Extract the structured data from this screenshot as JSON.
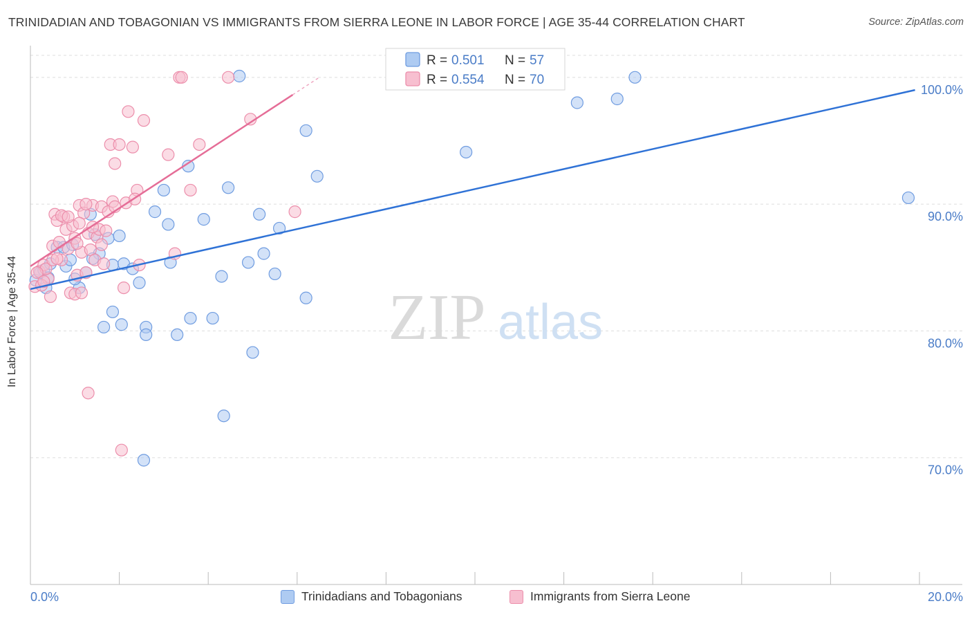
{
  "header": {
    "title": "TRINIDADIAN AND TOBAGONIAN VS IMMIGRANTS FROM SIERRA LEONE IN LABOR FORCE | AGE 35-44 CORRELATION CHART",
    "source": "Source: ZipAtlas.com"
  },
  "watermark": {
    "zip": "ZIP",
    "atlas": "atlas"
  },
  "colors": {
    "blue_fill": "#aecbf2",
    "blue_stroke": "#6f9ce0",
    "blue_line": "#2f72d6",
    "pink_fill": "#f7bfd0",
    "pink_stroke": "#ec8eab",
    "pink_line": "#e56d97",
    "tick_label": "#4a7cc7",
    "grid": "#dddddd"
  },
  "chart_data": {
    "type": "scatter",
    "title": "TRINIDADIAN AND TOBAGONIAN VS IMMIGRANTS FROM SIERRA LEONE IN LABOR FORCE | AGE 35-44 CORRELATION CHART",
    "xlabel": "",
    "ylabel": "In Labor Force | Age 35-44",
    "xlim": [
      0,
      20
    ],
    "ylim": [
      60,
      102.5
    ],
    "x_tick_labels": [
      {
        "value": 0,
        "label": "0.0%"
      },
      {
        "value": 20,
        "label": "20.0%"
      }
    ],
    "y_tick_labels": [
      {
        "value": 70,
        "label": "70.0%"
      },
      {
        "value": 80,
        "label": "80.0%"
      },
      {
        "value": 90,
        "label": "90.0%"
      },
      {
        "value": 100,
        "label": "100.0%"
      }
    ],
    "legend": [
      {
        "name": "Trinidadians and Tobagonians",
        "r_label": "R = ",
        "r": "0.501",
        "n_label": "N = ",
        "n": "57"
      },
      {
        "name": "Immigrants from Sierra Leone",
        "r_label": "R = ",
        "r": "0.554",
        "n_label": "N = ",
        "n": "70"
      }
    ],
    "series": [
      {
        "name": "Trinidadians and Tobagonians",
        "color": "blue",
        "trend": {
          "x0": 0.0,
          "y0": 83.3,
          "x1": 19.9,
          "y1": 99.0
        },
        "points": [
          [
            0.12,
            84.0
          ],
          [
            0.22,
            84.6
          ],
          [
            0.3,
            84.8
          ],
          [
            0.35,
            83.4
          ],
          [
            0.45,
            85.3
          ],
          [
            0.6,
            86.6
          ],
          [
            0.75,
            86.6
          ],
          [
            0.8,
            85.1
          ],
          [
            0.9,
            85.6
          ],
          [
            1.1,
            83.4
          ],
          [
            1.0,
            84.1
          ],
          [
            1.25,
            84.6
          ],
          [
            1.35,
            89.2
          ],
          [
            1.45,
            87.6
          ],
          [
            1.75,
            87.3
          ],
          [
            1.55,
            86.1
          ],
          [
            1.85,
            85.2
          ],
          [
            2.0,
            87.5
          ],
          [
            2.1,
            85.3
          ],
          [
            2.3,
            84.9
          ],
          [
            2.45,
            83.8
          ],
          [
            1.85,
            81.5
          ],
          [
            1.65,
            80.3
          ],
          [
            2.05,
            80.5
          ],
          [
            2.6,
            80.3
          ],
          [
            2.6,
            79.7
          ],
          [
            3.3,
            79.7
          ],
          [
            3.6,
            81.0
          ],
          [
            4.1,
            81.0
          ],
          [
            5.0,
            78.3
          ],
          [
            4.35,
            73.3
          ],
          [
            2.55,
            69.8
          ],
          [
            3.15,
            85.4
          ],
          [
            3.1,
            88.4
          ],
          [
            3.0,
            91.1
          ],
          [
            3.55,
            93.0
          ],
          [
            4.45,
            91.3
          ],
          [
            3.9,
            88.8
          ],
          [
            4.3,
            84.3
          ],
          [
            4.9,
            85.4
          ],
          [
            5.15,
            89.2
          ],
          [
            5.25,
            86.1
          ],
          [
            5.5,
            84.5
          ],
          [
            5.6,
            88.1
          ],
          [
            6.2,
            82.6
          ],
          [
            6.2,
            95.8
          ],
          [
            6.45,
            92.2
          ],
          [
            4.7,
            100.1
          ],
          [
            9.8,
            94.1
          ],
          [
            12.3,
            98.0
          ],
          [
            13.2,
            98.3
          ],
          [
            13.6,
            100.0
          ],
          [
            19.75,
            90.5
          ],
          [
            1.4,
            85.7
          ],
          [
            0.95,
            86.8
          ],
          [
            0.4,
            84.2
          ],
          [
            2.8,
            89.4
          ]
        ]
      },
      {
        "name": "Immigrants from Sierra Leone",
        "color": "pink",
        "trend": {
          "x0": 0.0,
          "y0": 85.1,
          "x1": 6.5,
          "y1": 100.0,
          "solid_until_x": 5.9
        },
        "points": [
          [
            0.1,
            83.5
          ],
          [
            0.2,
            84.7
          ],
          [
            0.3,
            85.2
          ],
          [
            0.4,
            84.1
          ],
          [
            0.45,
            82.7
          ],
          [
            0.5,
            86.7
          ],
          [
            0.55,
            89.2
          ],
          [
            0.6,
            88.7
          ],
          [
            0.7,
            85.6
          ],
          [
            0.75,
            89.0
          ],
          [
            0.8,
            88.0
          ],
          [
            0.85,
            86.5
          ],
          [
            0.9,
            83.0
          ],
          [
            0.95,
            88.3
          ],
          [
            1.0,
            87.3
          ],
          [
            1.05,
            84.4
          ],
          [
            1.1,
            89.9
          ],
          [
            1.15,
            86.2
          ],
          [
            1.2,
            89.3
          ],
          [
            1.25,
            84.6
          ],
          [
            1.3,
            87.7
          ],
          [
            1.35,
            86.4
          ],
          [
            1.4,
            89.9
          ],
          [
            1.45,
            85.6
          ],
          [
            1.5,
            87.4
          ],
          [
            1.55,
            88.0
          ],
          [
            1.6,
            89.8
          ],
          [
            1.65,
            85.3
          ],
          [
            1.7,
            87.9
          ],
          [
            1.75,
            89.4
          ],
          [
            1.8,
            94.7
          ],
          [
            1.85,
            90.2
          ],
          [
            1.9,
            93.2
          ],
          [
            2.0,
            94.7
          ],
          [
            2.1,
            83.4
          ],
          [
            2.15,
            90.1
          ],
          [
            2.2,
            97.3
          ],
          [
            2.3,
            94.5
          ],
          [
            2.4,
            91.1
          ],
          [
            2.45,
            85.2
          ],
          [
            2.55,
            96.6
          ],
          [
            3.1,
            93.9
          ],
          [
            3.25,
            86.1
          ],
          [
            3.35,
            100.0
          ],
          [
            3.4,
            100.0
          ],
          [
            3.6,
            91.1
          ],
          [
            3.8,
            94.7
          ],
          [
            4.45,
            100.0
          ],
          [
            4.95,
            96.7
          ],
          [
            5.95,
            89.4
          ],
          [
            1.0,
            82.9
          ],
          [
            1.3,
            75.1
          ],
          [
            2.05,
            70.6
          ],
          [
            1.1,
            88.5
          ],
          [
            0.65,
            87.0
          ],
          [
            0.35,
            84.9
          ],
          [
            0.25,
            83.6
          ],
          [
            0.5,
            85.6
          ],
          [
            0.7,
            89.1
          ],
          [
            1.4,
            88.2
          ],
          [
            1.15,
            83.0
          ],
          [
            0.85,
            89.0
          ],
          [
            1.6,
            86.8
          ],
          [
            1.9,
            89.8
          ],
          [
            0.15,
            84.6
          ],
          [
            0.3,
            83.9
          ],
          [
            1.05,
            86.9
          ],
          [
            0.6,
            85.7
          ],
          [
            1.25,
            90.0
          ],
          [
            2.35,
            90.4
          ]
        ]
      }
    ]
  }
}
